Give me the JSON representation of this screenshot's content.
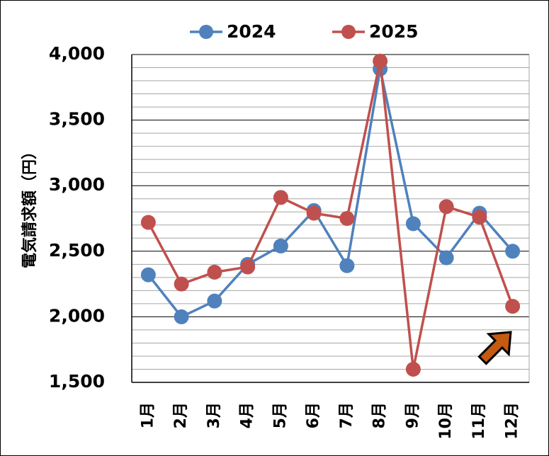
{
  "chart_data": {
    "type": "line",
    "title": "",
    "xlabel": "",
    "ylabel": "電気請求額（円）",
    "categories": [
      "1月",
      "2月",
      "3月",
      "4月",
      "5月",
      "6月",
      "7月",
      "8月",
      "9月",
      "10月",
      "11月",
      "12月"
    ],
    "ylim": [
      1500,
      4000
    ],
    "yticks": [
      1500,
      2000,
      2500,
      3000,
      3500,
      4000
    ],
    "ytick_labels": [
      "1,500",
      "2,000",
      "2,500",
      "3,000",
      "3,500",
      "4,000"
    ],
    "minor_grid_step": 100,
    "grid": true,
    "legend": "top-center",
    "series": [
      {
        "name": "2024",
        "color": "#4F81BD",
        "values": [
          2320,
          2000,
          2120,
          2400,
          2540,
          2810,
          2390,
          3890,
          2710,
          2450,
          2790,
          2500
        ]
      },
      {
        "name": "2025",
        "color": "#C0504D",
        "values": [
          2720,
          2250,
          2340,
          2380,
          2910,
          2790,
          2750,
          3950,
          1600,
          2840,
          2760,
          2080
        ]
      }
    ],
    "annotations": [
      {
        "type": "arrow",
        "icon": "up-right-arrow-icon",
        "color": "#C55A11",
        "points_to_category": "12月"
      }
    ]
  }
}
